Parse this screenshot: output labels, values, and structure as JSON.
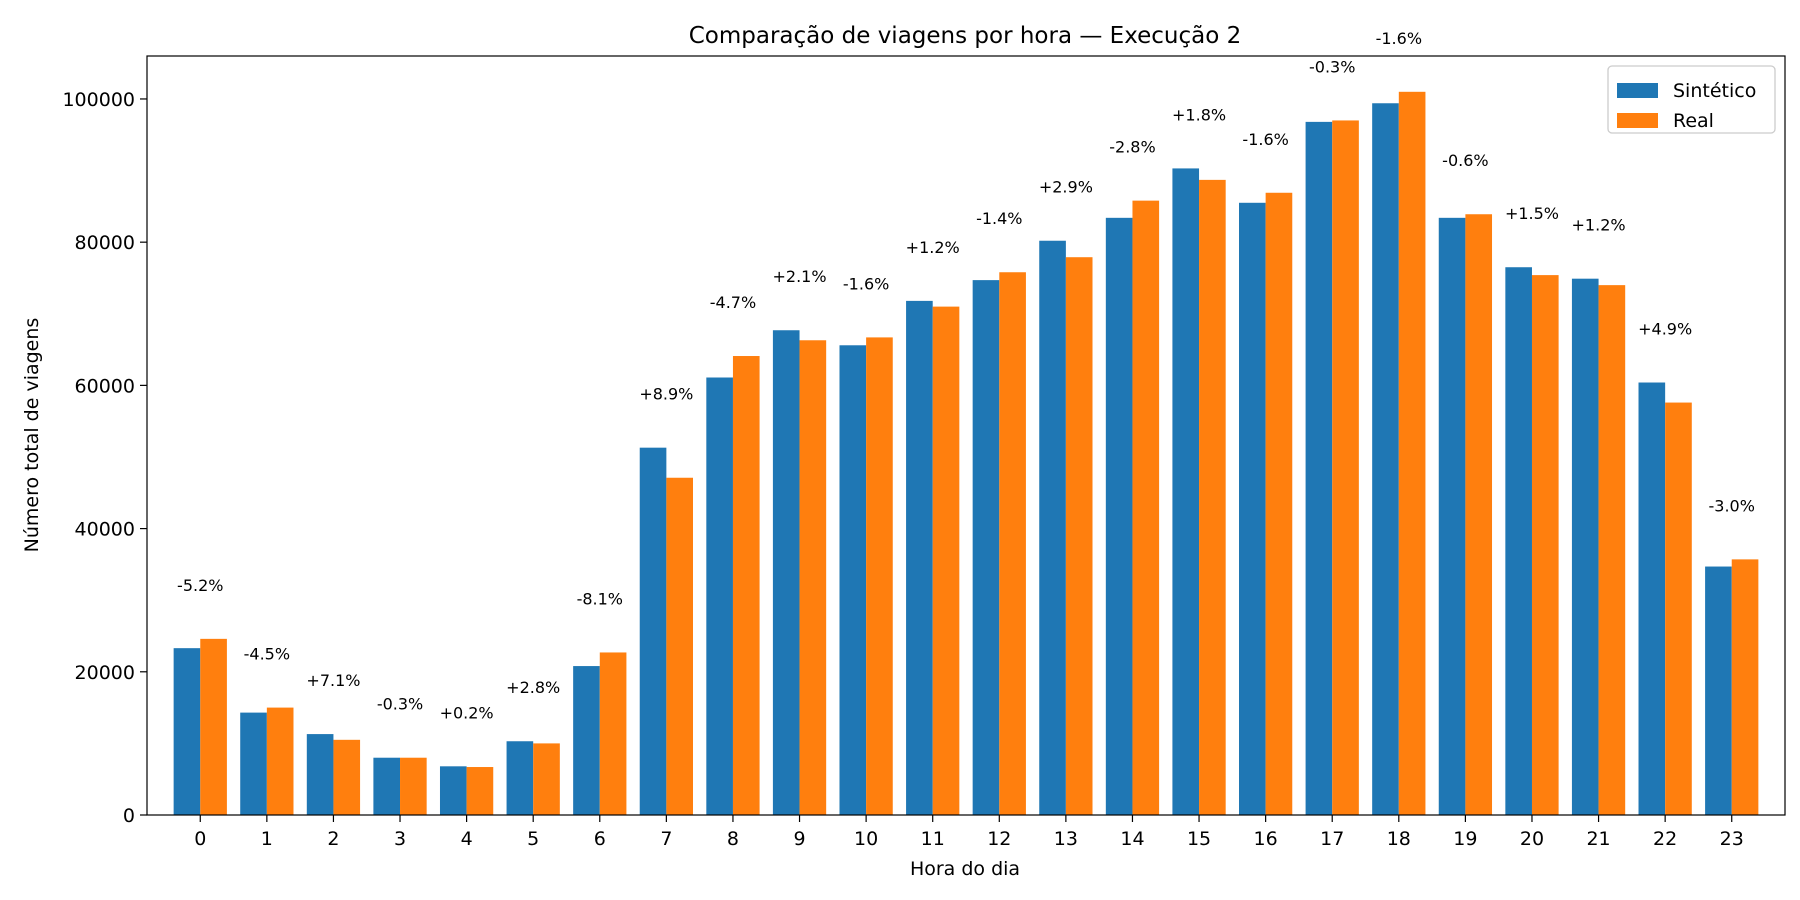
{
  "chart_data": {
    "type": "bar",
    "title": "Comparação de viagens por hora — Execução 2",
    "xlabel": "Hora do dia",
    "ylabel": "Número total de viagens",
    "ylim": [
      0,
      106000
    ],
    "yticks": [
      0,
      20000,
      40000,
      60000,
      80000,
      100000
    ],
    "categories": [
      "0",
      "1",
      "2",
      "3",
      "4",
      "5",
      "6",
      "7",
      "8",
      "9",
      "10",
      "11",
      "12",
      "13",
      "14",
      "15",
      "16",
      "17",
      "18",
      "19",
      "20",
      "21",
      "22",
      "23"
    ],
    "series": [
      {
        "name": "Sintético",
        "color": "#1f77b4",
        "values": [
          23300,
          14300,
          11300,
          8000,
          6800,
          10300,
          20800,
          51300,
          61100,
          67700,
          65600,
          71800,
          74700,
          80200,
          83400,
          90300,
          85500,
          96800,
          99400,
          83400,
          76500,
          74900,
          60400,
          34700
        ]
      },
      {
        "name": "Real",
        "color": "#ff7f0e",
        "values": [
          24600,
          15000,
          10500,
          8000,
          6700,
          10000,
          22700,
          47100,
          64100,
          66300,
          66700,
          71000,
          75800,
          77900,
          85800,
          88700,
          86900,
          97000,
          101000,
          83900,
          75400,
          74000,
          57600,
          35700
        ]
      }
    ],
    "annotations": [
      "-5.2%",
      "-4.5%",
      "+7.1%",
      "-0.3%",
      "+0.2%",
      "+2.8%",
      "-8.1%",
      "+8.9%",
      "-4.7%",
      "+2.1%",
      "-1.6%",
      "+1.2%",
      "-1.4%",
      "+2.9%",
      "-2.8%",
      "+1.8%",
      "-1.6%",
      "-0.3%",
      "-1.6%",
      "-0.6%",
      "+1.5%",
      "+1.2%",
      "+4.9%",
      "-3.0%"
    ],
    "legend_position": "top-right",
    "grid": false
  }
}
